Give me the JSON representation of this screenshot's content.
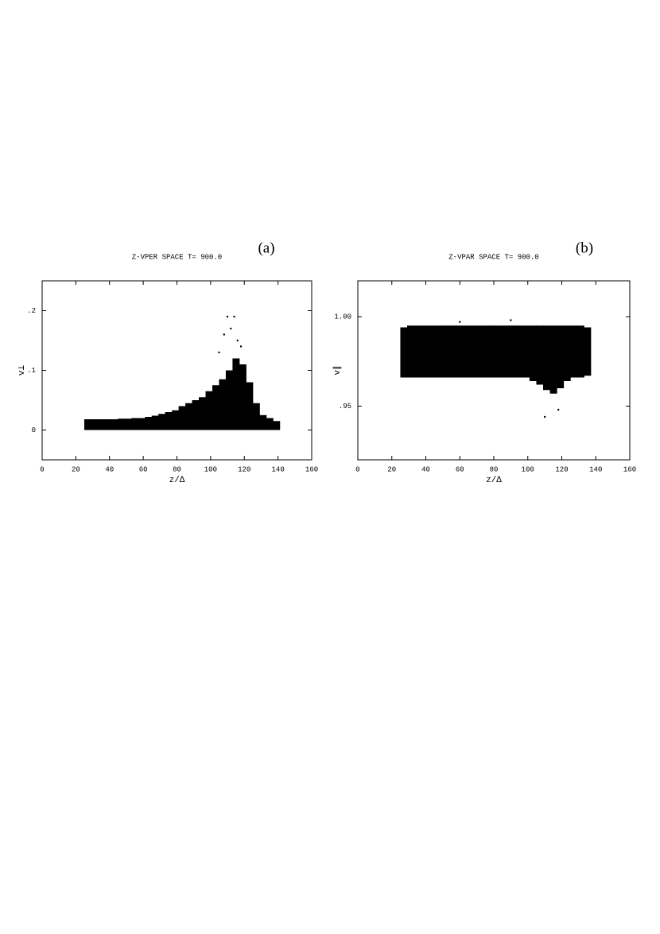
{
  "chart_data": [
    {
      "type": "scatter",
      "title": "Z-VPER  SPACE  T= 900.0",
      "panel_label": "(a)",
      "xlabel": "z/Δ",
      "ylabel": "v⊥",
      "xlim": [
        0,
        160
      ],
      "xticks": [
        0,
        20,
        40,
        60,
        80,
        100,
        120,
        140,
        160
      ],
      "ylim": [
        -0.05,
        0.25
      ],
      "yticks": [
        0,
        {
          "value": 0.1,
          "label": ".1"
        },
        {
          "value": 0.2,
          "label": ".2"
        }
      ],
      "color": "#000000",
      "x": [
        25,
        29,
        33,
        37,
        41,
        45,
        49,
        53,
        57,
        61,
        65,
        69,
        73,
        77,
        81,
        85,
        89,
        93,
        97,
        101,
        105,
        109,
        113,
        117,
        121,
        125,
        129,
        133,
        137
      ],
      "y_low": [
        0,
        0,
        0,
        0,
        0,
        0,
        0,
        0,
        0,
        0,
        0,
        0,
        0,
        0,
        0,
        0,
        0,
        0,
        0,
        0,
        0,
        0,
        0,
        0,
        0,
        0,
        0,
        0,
        0
      ],
      "y_high": [
        0.018,
        0.018,
        0.018,
        0.018,
        0.018,
        0.019,
        0.019,
        0.02,
        0.02,
        0.022,
        0.024,
        0.027,
        0.03,
        0.033,
        0.04,
        0.045,
        0.05,
        0.055,
        0.065,
        0.075,
        0.085,
        0.1,
        0.12,
        0.11,
        0.08,
        0.045,
        0.025,
        0.02,
        0.015
      ],
      "outliers": {
        "x": [
          110,
          114,
          112,
          116,
          118,
          108,
          105
        ],
        "y": [
          0.19,
          0.19,
          0.17,
          0.15,
          0.14,
          0.16,
          0.13
        ]
      }
    },
    {
      "type": "scatter",
      "title": "Z-VPAR  SPACE  T= 900.0",
      "panel_label": "(b)",
      "xlabel": "z/Δ",
      "ylabel": "v∥",
      "xlim": [
        0,
        160
      ],
      "xticks": [
        0,
        20,
        40,
        60,
        80,
        100,
        120,
        140,
        160
      ],
      "ylim": [
        0.92,
        1.02
      ],
      "yticks": [
        {
          "value": 0.95,
          "label": ".95"
        },
        {
          "value": 1,
          "label": "1.00"
        }
      ],
      "color": "#000000",
      "x": [
        25,
        29,
        33,
        37,
        41,
        45,
        49,
        53,
        57,
        61,
        65,
        69,
        73,
        77,
        81,
        85,
        89,
        93,
        97,
        101,
        105,
        109,
        113,
        117,
        121,
        125,
        129,
        133
      ],
      "y_low": [
        0.966,
        0.966,
        0.966,
        0.966,
        0.966,
        0.966,
        0.966,
        0.966,
        0.966,
        0.966,
        0.966,
        0.966,
        0.966,
        0.966,
        0.966,
        0.966,
        0.966,
        0.966,
        0.966,
        0.964,
        0.962,
        0.959,
        0.957,
        0.96,
        0.964,
        0.966,
        0.966,
        0.967
      ],
      "y_high": [
        0.994,
        0.995,
        0.995,
        0.995,
        0.995,
        0.995,
        0.995,
        0.995,
        0.995,
        0.995,
        0.995,
        0.995,
        0.995,
        0.995,
        0.995,
        0.995,
        0.995,
        0.995,
        0.995,
        0.995,
        0.995,
        0.995,
        0.995,
        0.995,
        0.995,
        0.995,
        0.995,
        0.994
      ],
      "outliers": {
        "x": [
          110,
          118,
          90,
          60
        ],
        "y": [
          0.944,
          0.948,
          0.998,
          0.997
        ]
      }
    }
  ]
}
